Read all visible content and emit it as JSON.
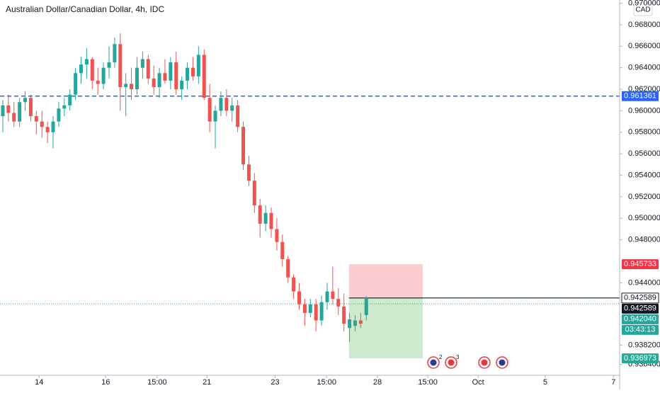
{
  "chart_data": {
    "type": "candlestick",
    "title": "Australian Dollar/Canadian Dollar, 4h, IDC",
    "currency": "CAD",
    "x": [
      0,
      1,
      2,
      3,
      4,
      5,
      6,
      7,
      8,
      9,
      10,
      11,
      12,
      13,
      14,
      15,
      16,
      17,
      18,
      19,
      20,
      21,
      22,
      23,
      24,
      25,
      26,
      27,
      28,
      29,
      30,
      31,
      32,
      33,
      34,
      35,
      36,
      37,
      38,
      39,
      40,
      41,
      42,
      43,
      44,
      45,
      46,
      47,
      48,
      49,
      50,
      51,
      52,
      53,
      54,
      55,
      56,
      57,
      58,
      59,
      60,
      61,
      62,
      63,
      64,
      65
    ],
    "open": [
      0.9595,
      0.9605,
      0.9598,
      0.959,
      0.9608,
      0.9612,
      0.9595,
      0.959,
      0.9585,
      0.958,
      0.959,
      0.9602,
      0.9605,
      0.9615,
      0.9635,
      0.9643,
      0.9648,
      0.9628,
      0.9625,
      0.964,
      0.9645,
      0.9662,
      0.9622,
      0.9625,
      0.962,
      0.964,
      0.9648,
      0.963,
      0.9622,
      0.9635,
      0.9628,
      0.9645,
      0.962,
      0.9628,
      0.964,
      0.9632,
      0.9652,
      0.9612,
      0.959,
      0.96,
      0.9612,
      0.96,
      0.9605,
      0.9585,
      0.955,
      0.9535,
      0.9512,
      0.9495,
      0.9505,
      0.949,
      0.9478,
      0.9462,
      0.9445,
      0.9432,
      0.942,
      0.9412,
      0.942,
      0.9405,
      0.9422,
      0.9432,
      0.9425,
      0.9418,
      0.9398,
      0.94,
      0.9405,
      0.941
    ],
    "high": [
      0.961,
      0.9615,
      0.9608,
      0.9612,
      0.9618,
      0.9615,
      0.96,
      0.96,
      0.959,
      0.9595,
      0.9608,
      0.9612,
      0.962,
      0.964,
      0.965,
      0.9658,
      0.965,
      0.964,
      0.9645,
      0.966,
      0.9668,
      0.9672,
      0.9635,
      0.964,
      0.965,
      0.9655,
      0.9652,
      0.9642,
      0.964,
      0.9648,
      0.965,
      0.9655,
      0.9632,
      0.9645,
      0.965,
      0.966,
      0.9657,
      0.9625,
      0.9605,
      0.9618,
      0.962,
      0.9612,
      0.961,
      0.959,
      0.9558,
      0.9542,
      0.9518,
      0.9512,
      0.951,
      0.95,
      0.9485,
      0.9465,
      0.9448,
      0.944,
      0.9425,
      0.9425,
      0.9425,
      0.9428,
      0.944,
      0.9455,
      0.9435,
      0.943,
      0.9412,
      0.941,
      0.9412,
      0.9428
    ],
    "low": [
      0.958,
      0.959,
      0.9585,
      0.9585,
      0.96,
      0.959,
      0.9578,
      0.9575,
      0.957,
      0.9565,
      0.9585,
      0.9595,
      0.96,
      0.961,
      0.9625,
      0.963,
      0.962,
      0.9615,
      0.962,
      0.963,
      0.964,
      0.96,
      0.9595,
      0.961,
      0.9615,
      0.963,
      0.9625,
      0.9615,
      0.9612,
      0.9625,
      0.962,
      0.9615,
      0.961,
      0.962,
      0.9628,
      0.9625,
      0.961,
      0.958,
      0.9565,
      0.9595,
      0.9595,
      0.959,
      0.958,
      0.9545,
      0.953,
      0.9505,
      0.9482,
      0.9488,
      0.9482,
      0.947,
      0.9455,
      0.944,
      0.9425,
      0.9415,
      0.94,
      0.9408,
      0.9395,
      0.94,
      0.9415,
      0.942,
      0.941,
      0.9395,
      0.9385,
      0.9395,
      0.9398,
      0.9405
    ],
    "close": [
      0.9605,
      0.9598,
      0.959,
      0.9608,
      0.9612,
      0.9595,
      0.959,
      0.9585,
      0.958,
      0.959,
      0.9602,
      0.9605,
      0.9615,
      0.9635,
      0.9643,
      0.9648,
      0.9628,
      0.9625,
      0.964,
      0.9645,
      0.9662,
      0.9622,
      0.9625,
      0.962,
      0.964,
      0.9648,
      0.963,
      0.9622,
      0.9635,
      0.9628,
      0.9645,
      0.962,
      0.9628,
      0.964,
      0.9632,
      0.9652,
      0.9612,
      0.959,
      0.96,
      0.9612,
      0.96,
      0.9605,
      0.9585,
      0.955,
      0.9535,
      0.9512,
      0.9495,
      0.9505,
      0.949,
      0.9478,
      0.9462,
      0.9445,
      0.9432,
      0.942,
      0.9412,
      0.942,
      0.9405,
      0.9422,
      0.9432,
      0.9425,
      0.9418,
      0.9402,
      0.9406,
      0.9405,
      0.9402,
      0.9426
    ],
    "up_color": "#26a69a",
    "down_color": "#ef5350",
    "xlim": [
      -0.5,
      110.3
    ],
    "xticks": [
      {
        "value": 6.5,
        "label": "14"
      },
      {
        "value": 18.4,
        "label": "16"
      },
      {
        "value": 27.6,
        "label": "15:00"
      },
      {
        "value": 36.5,
        "label": "21"
      },
      {
        "value": 48.7,
        "label": "23"
      },
      {
        "value": 57.9,
        "label": "15:00"
      },
      {
        "value": 67,
        "label": "28"
      },
      {
        "value": 76,
        "label": "15:00"
      },
      {
        "value": 85,
        "label": "Oct"
      },
      {
        "value": 97,
        "label": "5"
      },
      {
        "value": 109.2,
        "label": "7"
      }
    ],
    "ylim": [
      0.9354,
      0.9703
    ],
    "yticks": [
      {
        "value": 0.9364,
        "label": "0.936400"
      },
      {
        "value": 0.9382,
        "label": "0.938200"
      },
      {
        "value": 0.944,
        "label": "0.944000"
      },
      {
        "value": 0.948,
        "label": "0.948000"
      },
      {
        "value": 0.95,
        "label": "0.950000"
      },
      {
        "value": 0.952,
        "label": "0.952000"
      },
      {
        "value": 0.954,
        "label": "0.954000"
      },
      {
        "value": 0.956,
        "label": "0.956000"
      },
      {
        "value": 0.958,
        "label": "0.958000"
      },
      {
        "value": 0.96,
        "label": "0.960000"
      },
      {
        "value": 0.962,
        "label": "0.962000"
      },
      {
        "value": 0.964,
        "label": "0.964000"
      },
      {
        "value": 0.966,
        "label": "0.966000"
      },
      {
        "value": 0.968,
        "label": "0.968000"
      },
      {
        "value": 0.97,
        "label": "0.970000"
      }
    ],
    "horizontal_line": {
      "value": 0.961361,
      "label": "0.961361",
      "color": "#2962ff"
    },
    "current_price_line": {
      "value": 0.94204,
      "color": "#26a69a"
    },
    "position": {
      "entry": 0.942589,
      "stop": 0.945733,
      "target": 0.936973,
      "x_start": 61.9,
      "x_end": 75.1,
      "entry_label": "0.942589",
      "stop_label": "0.945733",
      "target_label": "0.936973"
    },
    "last_price_label": "0.942589",
    "bid_label": "0.942040",
    "countdown": "03:43:13",
    "event_counts": [
      2,
      3
    ]
  }
}
